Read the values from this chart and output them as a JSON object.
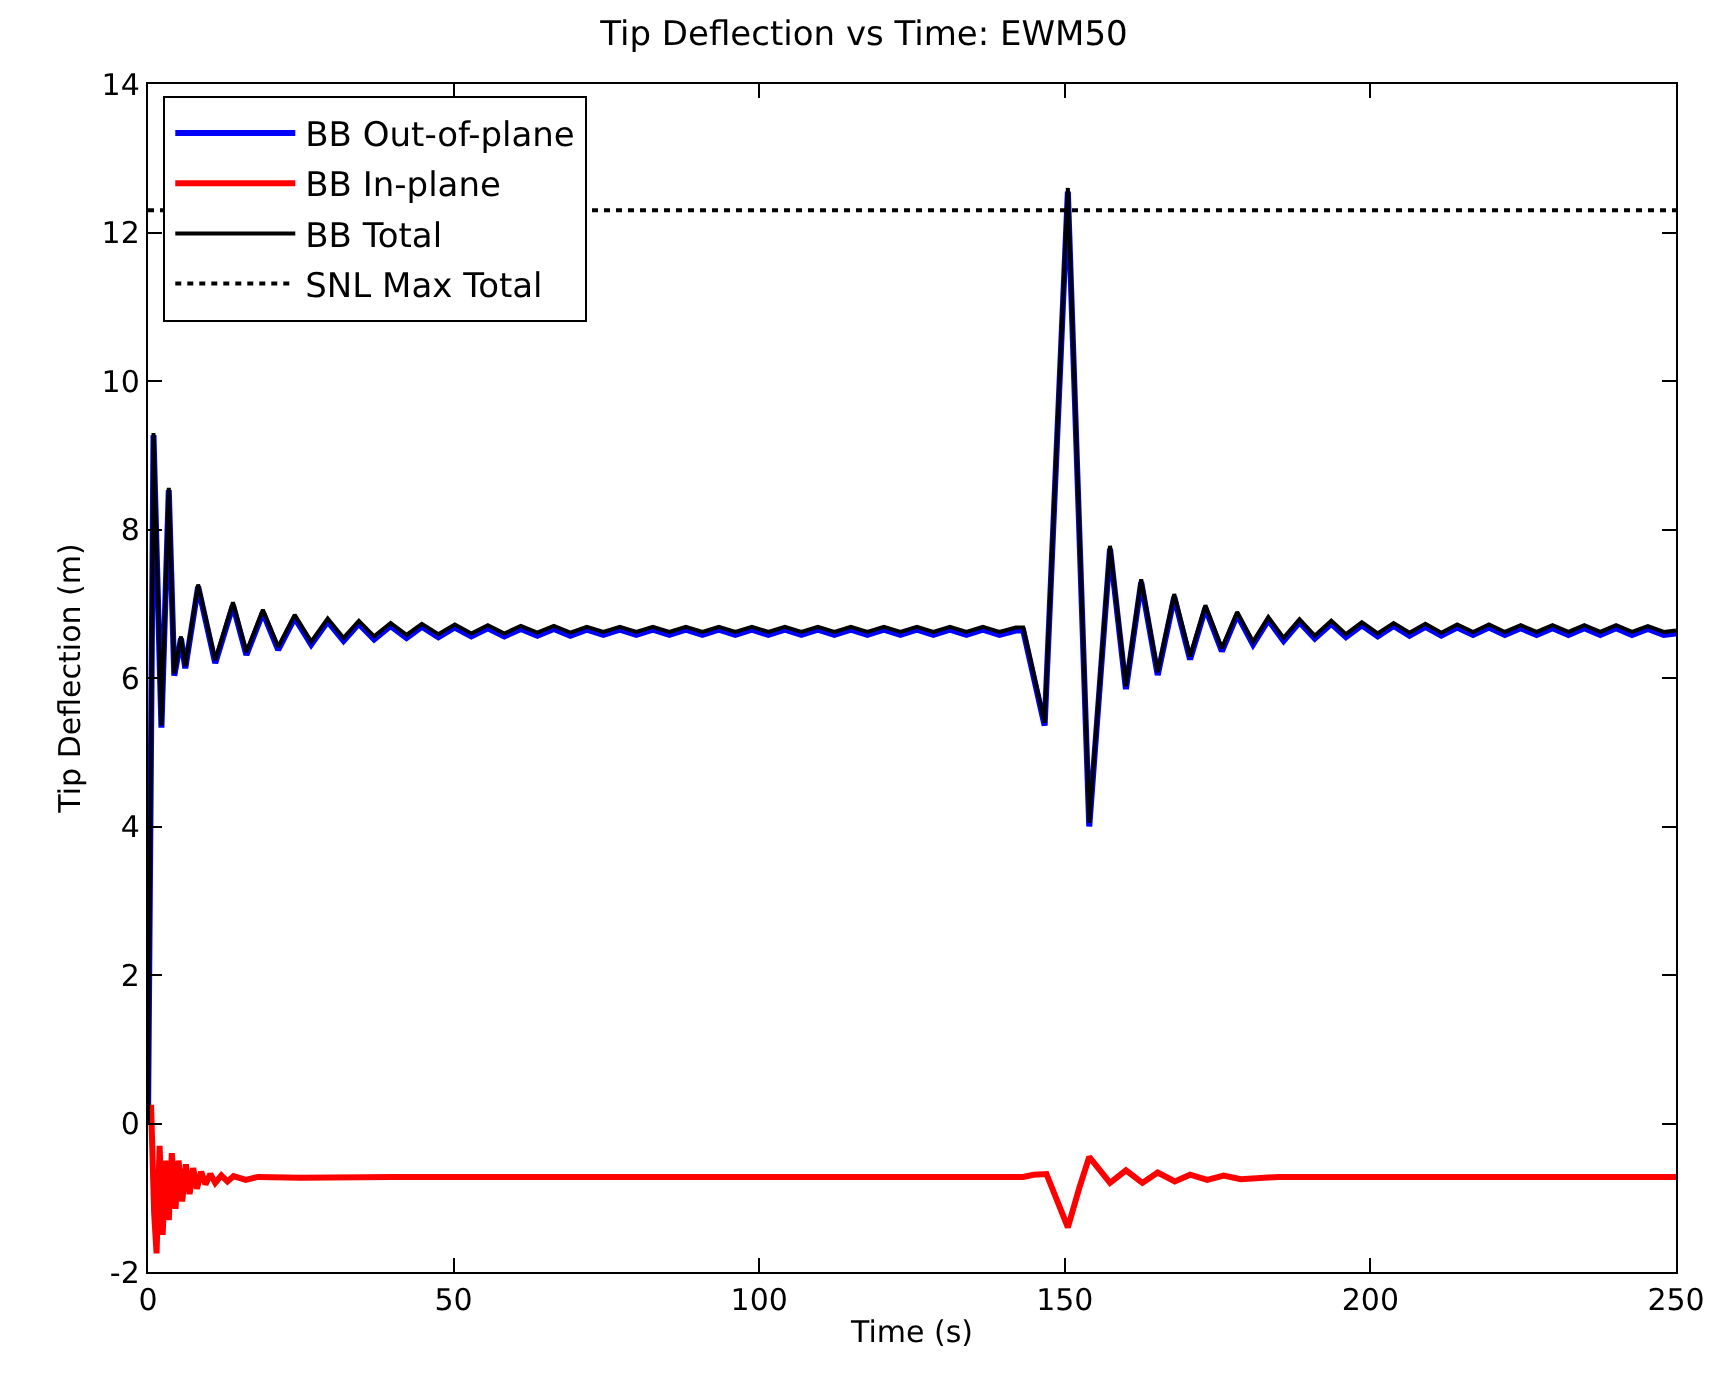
{
  "chart_data": {
    "type": "line",
    "title": "Tip Deflection vs Time: EWM50",
    "xlabel": "Time (s)",
    "ylabel": "Tip Deflection (m)",
    "xlim": [
      0,
      250
    ],
    "xticks": [
      0,
      50,
      100,
      150,
      200,
      250
    ],
    "ylim": [
      -2,
      14
    ],
    "yticks": [
      -2,
      0,
      2,
      4,
      6,
      8,
      10,
      12,
      14
    ],
    "legend": "top left",
    "marker": "none",
    "series": [
      {
        "name": "BB Out-of-plane",
        "color": "#0000ff",
        "line_style": "solid",
        "x": [
          0,
          0.9,
          2.2,
          3.4,
          4.3,
          5.4,
          6.1,
          8.2,
          11.0,
          13.9,
          16.1,
          18.8,
          21.3,
          24.0,
          26.7,
          29.4,
          32.0,
          34.5,
          37.0,
          39.7,
          42.3,
          44.8,
          47.5,
          50.2,
          52.9,
          55.6,
          58.3,
          61.0,
          63.7,
          66.4,
          69.1,
          71.8,
          74.5,
          77.2,
          79.9,
          82.6,
          85.3,
          88.0,
          90.7,
          93.4,
          96.1,
          98.8,
          101.5,
          104.2,
          106.9,
          109.6,
          112.3,
          115.0,
          117.7,
          120.4,
          123.1,
          125.8,
          128.5,
          131.2,
          133.9,
          136.6,
          139.3,
          142.0,
          143.2,
          146.7,
          150.5,
          154.0,
          157.4,
          160.0,
          162.5,
          165.2,
          167.9,
          170.5,
          173.0,
          175.7,
          178.2,
          180.8,
          183.3,
          185.8,
          188.4,
          190.9,
          193.6,
          196.0,
          198.6,
          201.2,
          203.8,
          206.4,
          209.0,
          211.6,
          214.2,
          216.8,
          219.4,
          222.0,
          224.6,
          227.2,
          229.8,
          232.4,
          235.0,
          237.6,
          240.2,
          242.8,
          245.4,
          248.0,
          250.0
        ],
        "values": [
          0.0,
          9.27,
          5.33,
          8.53,
          6.03,
          6.53,
          6.13,
          7.23,
          6.2,
          6.98,
          6.31,
          6.88,
          6.38,
          6.81,
          6.45,
          6.76,
          6.5,
          6.73,
          6.52,
          6.7,
          6.54,
          6.69,
          6.55,
          6.68,
          6.56,
          6.67,
          6.56,
          6.66,
          6.57,
          6.66,
          6.57,
          6.65,
          6.58,
          6.65,
          6.58,
          6.65,
          6.58,
          6.65,
          6.58,
          6.65,
          6.58,
          6.65,
          6.58,
          6.65,
          6.58,
          6.65,
          6.58,
          6.65,
          6.58,
          6.65,
          6.58,
          6.65,
          6.58,
          6.65,
          6.58,
          6.65,
          6.58,
          6.64,
          6.64,
          5.36,
          12.55,
          4.0,
          7.74,
          5.85,
          7.29,
          6.04,
          7.09,
          6.25,
          6.94,
          6.36,
          6.85,
          6.45,
          6.78,
          6.5,
          6.75,
          6.53,
          6.73,
          6.55,
          6.71,
          6.56,
          6.7,
          6.57,
          6.69,
          6.57,
          6.68,
          6.58,
          6.68,
          6.58,
          6.67,
          6.58,
          6.67,
          6.58,
          6.67,
          6.58,
          6.67,
          6.58,
          6.66,
          6.58,
          6.6
        ]
      },
      {
        "name": "BB In-plane",
        "color": "#ff0000",
        "line_style": "solid",
        "x": [
          0,
          0.5,
          1.0,
          1.4,
          1.9,
          2.4,
          2.9,
          3.4,
          3.9,
          4.5,
          5.0,
          5.6,
          6.2,
          6.8,
          7.4,
          8.0,
          8.7,
          9.4,
          10.2,
          11,
          12,
          13,
          14,
          16,
          18,
          25,
          40,
          80,
          120,
          143.2,
          144.9,
          147,
          150.5,
          152.4,
          154.0,
          157.4,
          160,
          162.7,
          165.2,
          168,
          170.5,
          173.3,
          176,
          178.8,
          185,
          200,
          250
        ],
        "values": [
          0.0,
          0.25,
          -1.2,
          -1.75,
          -0.3,
          -1.5,
          -0.5,
          -1.3,
          -0.4,
          -1.15,
          -0.5,
          -1.05,
          -0.55,
          -0.95,
          -0.6,
          -0.88,
          -0.65,
          -0.82,
          -0.68,
          -0.8,
          -0.7,
          -0.78,
          -0.71,
          -0.76,
          -0.72,
          -0.73,
          -0.72,
          -0.72,
          -0.72,
          -0.72,
          -0.69,
          -0.68,
          -1.4,
          -0.86,
          -0.45,
          -0.8,
          -0.63,
          -0.8,
          -0.66,
          -0.78,
          -0.69,
          -0.76,
          -0.7,
          -0.75,
          -0.72,
          -0.72,
          -0.72
        ]
      },
      {
        "name": "BB Total",
        "color": "#000000",
        "line_style": "solid",
        "x": [
          0,
          0.9,
          2.2,
          3.4,
          4.3,
          5.4,
          6.1,
          8.2,
          11.0,
          13.9,
          16.1,
          18.8,
          21.3,
          24.0,
          26.7,
          29.4,
          32.0,
          34.5,
          37.0,
          39.7,
          42.3,
          44.8,
          47.5,
          50.2,
          52.9,
          55.6,
          58.3,
          61.0,
          63.7,
          66.4,
          69.1,
          71.8,
          74.5,
          77.2,
          79.9,
          82.6,
          85.3,
          88.0,
          90.7,
          93.4,
          96.1,
          98.8,
          101.5,
          104.2,
          106.9,
          109.6,
          112.3,
          115.0,
          117.7,
          120.4,
          123.1,
          125.8,
          128.5,
          131.2,
          133.9,
          136.6,
          139.3,
          142.0,
          143.2,
          146.7,
          150.5,
          154.0,
          157.4,
          160.0,
          162.5,
          165.2,
          167.9,
          170.5,
          173.0,
          175.7,
          178.2,
          180.8,
          183.3,
          185.8,
          188.4,
          190.9,
          193.6,
          196.0,
          198.6,
          201.2,
          203.8,
          206.4,
          209.0,
          211.6,
          214.2,
          216.8,
          219.4,
          222.0,
          224.6,
          227.2,
          229.8,
          232.4,
          235.0,
          237.6,
          240.2,
          242.8,
          245.4,
          248.0,
          250.0
        ],
        "values": [
          0.0,
          9.3,
          5.36,
          8.56,
          6.06,
          6.56,
          6.16,
          7.26,
          6.24,
          7.02,
          6.35,
          6.92,
          6.42,
          6.85,
          6.49,
          6.8,
          6.54,
          6.77,
          6.56,
          6.74,
          6.58,
          6.73,
          6.59,
          6.72,
          6.6,
          6.71,
          6.6,
          6.7,
          6.61,
          6.7,
          6.61,
          6.69,
          6.62,
          6.69,
          6.62,
          6.69,
          6.62,
          6.69,
          6.62,
          6.69,
          6.62,
          6.69,
          6.62,
          6.69,
          6.62,
          6.69,
          6.62,
          6.69,
          6.62,
          6.69,
          6.62,
          6.69,
          6.62,
          6.69,
          6.62,
          6.69,
          6.62,
          6.68,
          6.68,
          5.4,
          12.6,
          4.05,
          7.78,
          5.89,
          7.33,
          6.08,
          7.13,
          6.29,
          6.98,
          6.4,
          6.89,
          6.49,
          6.82,
          6.54,
          6.79,
          6.57,
          6.77,
          6.59,
          6.75,
          6.6,
          6.74,
          6.61,
          6.73,
          6.61,
          6.72,
          6.62,
          6.72,
          6.62,
          6.71,
          6.62,
          6.71,
          6.62,
          6.71,
          6.62,
          6.71,
          6.62,
          6.7,
          6.62,
          6.64
        ]
      },
      {
        "name": "SNL Max Total",
        "color": "#000000",
        "line_style": "dotted",
        "x": [
          0,
          250
        ],
        "values": [
          12.3,
          12.3
        ]
      }
    ]
  }
}
